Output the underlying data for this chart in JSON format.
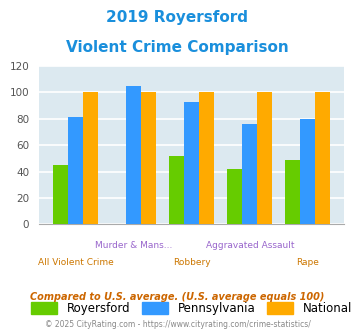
{
  "title_line1": "2019 Royersford",
  "title_line2": "Violent Crime Comparison",
  "title_color": "#1a8fdc",
  "categories": [
    "All Violent Crime",
    "Murder & Mans...",
    "Robbery",
    "Aggravated Assault",
    "Rape"
  ],
  "royersford": [
    45,
    0,
    52,
    42,
    49
  ],
  "pennsylvania": [
    81,
    105,
    93,
    76,
    80
  ],
  "national": [
    100,
    100,
    100,
    100,
    100
  ],
  "colors": {
    "royersford": "#66cc00",
    "pennsylvania": "#3399ff",
    "national": "#ffaa00"
  },
  "ylim": [
    0,
    120
  ],
  "yticks": [
    0,
    20,
    40,
    60,
    80,
    100,
    120
  ],
  "legend_labels": [
    "Royersford",
    "Pennsylvania",
    "National"
  ],
  "footnote1": "Compared to U.S. average. (U.S. average equals 100)",
  "footnote2": "© 2025 CityRating.com - https://www.cityrating.com/crime-statistics/",
  "bg_color": "#dce9f0",
  "grid_color": "#ffffff",
  "x_labels_top": [
    "",
    "Murder & Mans...",
    "",
    "Aggravated Assault",
    ""
  ],
  "x_labels_bot": [
    "All Violent Crime",
    "",
    "Robbery",
    "",
    "Rape"
  ],
  "x_color_top": "#9966cc",
  "x_color_bot": "#cc7700"
}
